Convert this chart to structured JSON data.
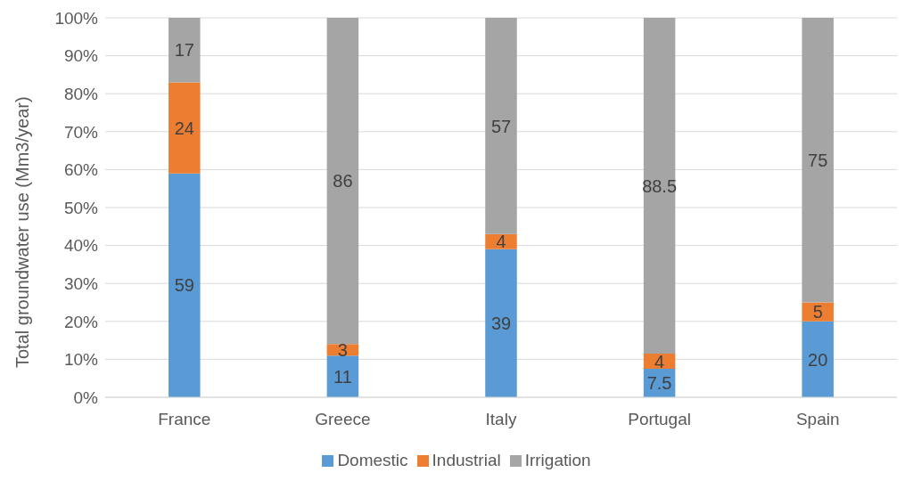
{
  "chart_data": {
    "type": "bar",
    "stacked": true,
    "ylabel": "Total  groundwater use (Mm3/year)",
    "categories": [
      "France",
      "Greece",
      "Italy",
      "Portugal",
      "Spain"
    ],
    "series": [
      {
        "name": "Domestic",
        "color": "#5b9bd5",
        "values": [
          59,
          11,
          39,
          7.5,
          20
        ]
      },
      {
        "name": "Industrial",
        "color": "#ed7d31",
        "values": [
          24,
          3,
          4,
          4,
          5
        ]
      },
      {
        "name": "Irrigation",
        "color": "#a5a5a5",
        "values": [
          17,
          86,
          57,
          88.5,
          75
        ]
      }
    ],
    "ylim": [
      0,
      100
    ],
    "yticks": [
      {
        "value": 0,
        "label": "0%"
      },
      {
        "value": 10,
        "label": "10%"
      },
      {
        "value": 20,
        "label": "20%"
      },
      {
        "value": 30,
        "label": "30%"
      },
      {
        "value": 40,
        "label": "40%"
      },
      {
        "value": 50,
        "label": "50%"
      },
      {
        "value": 60,
        "label": "60%"
      },
      {
        "value": 70,
        "label": "70%"
      },
      {
        "value": 80,
        "label": "80%"
      },
      {
        "value": 90,
        "label": "90%"
      },
      {
        "value": 100,
        "label": "100%"
      }
    ],
    "grid": "y",
    "legend": "bottom",
    "data_labels": true
  }
}
